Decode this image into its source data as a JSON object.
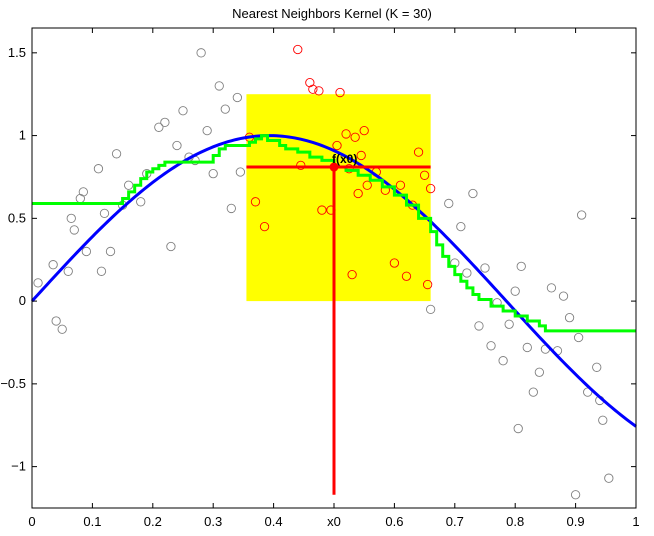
{
  "chart_data": {
    "type": "scatter",
    "title": "Nearest Neighbors Kernel (K = 30)",
    "xlabel": "",
    "ylabel": "",
    "xlim": [
      0,
      1
    ],
    "ylim": [
      -1.25,
      1.65
    ],
    "grid": false,
    "x_ticks": [
      {
        "value": 0,
        "label": "0"
      },
      {
        "value": 0.1,
        "label": "0.1"
      },
      {
        "value": 0.2,
        "label": "0.2"
      },
      {
        "value": 0.3,
        "label": "0.3"
      },
      {
        "value": 0.4,
        "label": "0.4"
      },
      {
        "value": 0.5,
        "label": "x0"
      },
      {
        "value": 0.6,
        "label": "0.6"
      },
      {
        "value": 0.7,
        "label": "0.7"
      },
      {
        "value": 0.8,
        "label": "0.8"
      },
      {
        "value": 0.9,
        "label": "0.9"
      },
      {
        "value": 1.0,
        "label": "1"
      }
    ],
    "y_ticks": [
      {
        "value": -1,
        "label": "−1"
      },
      {
        "value": -0.5,
        "label": "−0.5"
      },
      {
        "value": 0,
        "label": "0"
      },
      {
        "value": 0.5,
        "label": "0.5"
      },
      {
        "value": 1,
        "label": "1"
      },
      {
        "value": 1.5,
        "label": "1.5"
      }
    ],
    "x0": 0.5,
    "fx0": 0.81,
    "annotation": "f(x0)",
    "neighborhood": {
      "x_min": 0.355,
      "x_max": 0.66,
      "y_min": 0,
      "y_max": 1.25,
      "color": "#ffff00"
    },
    "true_function": {
      "name": "sin(4x)",
      "color": "#0000ff"
    },
    "colors": {
      "estimate": "#00ff00",
      "marker": "#ff0000",
      "outside_points": "#808080",
      "neighbor_points": "#ff0000"
    },
    "estimate": [
      [
        0.0,
        0.59
      ],
      [
        0.15,
        0.59
      ],
      [
        0.15,
        0.62
      ],
      [
        0.16,
        0.62
      ],
      [
        0.16,
        0.66
      ],
      [
        0.17,
        0.66
      ],
      [
        0.17,
        0.7
      ],
      [
        0.18,
        0.7
      ],
      [
        0.18,
        0.74
      ],
      [
        0.19,
        0.74
      ],
      [
        0.19,
        0.78
      ],
      [
        0.2,
        0.78
      ],
      [
        0.2,
        0.8
      ],
      [
        0.21,
        0.8
      ],
      [
        0.21,
        0.82
      ],
      [
        0.22,
        0.82
      ],
      [
        0.22,
        0.84
      ],
      [
        0.3,
        0.84
      ],
      [
        0.3,
        0.88
      ],
      [
        0.31,
        0.88
      ],
      [
        0.31,
        0.92
      ],
      [
        0.32,
        0.92
      ],
      [
        0.32,
        0.94
      ],
      [
        0.36,
        0.94
      ],
      [
        0.36,
        0.96
      ],
      [
        0.37,
        0.96
      ],
      [
        0.37,
        0.98
      ],
      [
        0.38,
        0.98
      ],
      [
        0.38,
        1.0
      ],
      [
        0.39,
        1.0
      ],
      [
        0.39,
        0.97
      ],
      [
        0.41,
        0.97
      ],
      [
        0.41,
        0.94
      ],
      [
        0.42,
        0.94
      ],
      [
        0.42,
        0.92
      ],
      [
        0.44,
        0.92
      ],
      [
        0.44,
        0.9
      ],
      [
        0.46,
        0.9
      ],
      [
        0.46,
        0.87
      ],
      [
        0.48,
        0.87
      ],
      [
        0.48,
        0.85
      ],
      [
        0.5,
        0.85
      ],
      [
        0.5,
        0.81
      ],
      [
        0.52,
        0.81
      ],
      [
        0.52,
        0.79
      ],
      [
        0.54,
        0.79
      ],
      [
        0.54,
        0.76
      ],
      [
        0.56,
        0.76
      ],
      [
        0.56,
        0.73
      ],
      [
        0.58,
        0.73
      ],
      [
        0.58,
        0.69
      ],
      [
        0.6,
        0.69
      ],
      [
        0.6,
        0.64
      ],
      [
        0.62,
        0.64
      ],
      [
        0.62,
        0.58
      ],
      [
        0.64,
        0.58
      ],
      [
        0.64,
        0.5
      ],
      [
        0.66,
        0.5
      ],
      [
        0.66,
        0.42
      ],
      [
        0.67,
        0.42
      ],
      [
        0.67,
        0.34
      ],
      [
        0.68,
        0.34
      ],
      [
        0.68,
        0.27
      ],
      [
        0.69,
        0.27
      ],
      [
        0.69,
        0.21
      ],
      [
        0.7,
        0.21
      ],
      [
        0.7,
        0.16
      ],
      [
        0.71,
        0.16
      ],
      [
        0.71,
        0.12
      ],
      [
        0.72,
        0.12
      ],
      [
        0.72,
        0.08
      ],
      [
        0.73,
        0.08
      ],
      [
        0.73,
        0.04
      ],
      [
        0.74,
        0.04
      ],
      [
        0.74,
        0.01
      ],
      [
        0.76,
        0.01
      ],
      [
        0.76,
        -0.03
      ],
      [
        0.78,
        -0.03
      ],
      [
        0.78,
        -0.06
      ],
      [
        0.8,
        -0.06
      ],
      [
        0.8,
        -0.09
      ],
      [
        0.82,
        -0.09
      ],
      [
        0.82,
        -0.12
      ],
      [
        0.84,
        -0.12
      ],
      [
        0.84,
        -0.15
      ],
      [
        0.85,
        -0.15
      ],
      [
        0.85,
        -0.18
      ],
      [
        1.0,
        -0.18
      ]
    ],
    "points": [
      [
        0.01,
        0.11
      ],
      [
        0.035,
        0.22
      ],
      [
        0.04,
        -0.12
      ],
      [
        0.05,
        -0.17
      ],
      [
        0.06,
        0.18
      ],
      [
        0.065,
        0.5
      ],
      [
        0.07,
        0.43
      ],
      [
        0.08,
        0.62
      ],
      [
        0.085,
        0.66
      ],
      [
        0.09,
        0.3
      ],
      [
        0.11,
        0.8
      ],
      [
        0.115,
        0.18
      ],
      [
        0.12,
        0.53
      ],
      [
        0.13,
        0.3
      ],
      [
        0.14,
        0.89
      ],
      [
        0.15,
        0.58
      ],
      [
        0.16,
        0.7
      ],
      [
        0.18,
        0.6
      ],
      [
        0.19,
        0.77
      ],
      [
        0.21,
        1.05
      ],
      [
        0.22,
        1.08
      ],
      [
        0.23,
        0.33
      ],
      [
        0.24,
        0.94
      ],
      [
        0.25,
        1.15
      ],
      [
        0.26,
        0.87
      ],
      [
        0.27,
        0.85
      ],
      [
        0.28,
        1.5
      ],
      [
        0.29,
        1.03
      ],
      [
        0.3,
        0.77
      ],
      [
        0.31,
        1.3
      ],
      [
        0.32,
        1.16
      ],
      [
        0.33,
        0.56
      ],
      [
        0.34,
        1.23
      ],
      [
        0.345,
        0.78
      ],
      [
        0.66,
        -0.05
      ],
      [
        0.69,
        0.59
      ],
      [
        0.7,
        0.23
      ],
      [
        0.71,
        0.45
      ],
      [
        0.72,
        0.17
      ],
      [
        0.73,
        0.65
      ],
      [
        0.74,
        -0.15
      ],
      [
        0.75,
        0.2
      ],
      [
        0.76,
        -0.27
      ],
      [
        0.77,
        -0.01
      ],
      [
        0.78,
        -0.36
      ],
      [
        0.79,
        -0.14
      ],
      [
        0.8,
        0.06
      ],
      [
        0.805,
        -0.77
      ],
      [
        0.81,
        0.21
      ],
      [
        0.82,
        -0.28
      ],
      [
        0.83,
        -0.55
      ],
      [
        0.84,
        -0.43
      ],
      [
        0.85,
        -0.29
      ],
      [
        0.86,
        0.08
      ],
      [
        0.87,
        -0.3
      ],
      [
        0.88,
        0.03
      ],
      [
        0.89,
        -0.1
      ],
      [
        0.9,
        -1.17
      ],
      [
        0.905,
        -0.22
      ],
      [
        0.91,
        0.52
      ],
      [
        0.92,
        -0.55
      ],
      [
        0.935,
        -0.4
      ],
      [
        0.94,
        -0.6
      ],
      [
        0.945,
        -0.72
      ],
      [
        0.955,
        -1.07
      ]
    ],
    "neighbor_points": [
      [
        0.36,
        0.99
      ],
      [
        0.37,
        0.6
      ],
      [
        0.385,
        0.45
      ],
      [
        0.44,
        1.52
      ],
      [
        0.445,
        0.82
      ],
      [
        0.46,
        1.32
      ],
      [
        0.465,
        1.28
      ],
      [
        0.475,
        1.27
      ],
      [
        0.48,
        0.55
      ],
      [
        0.495,
        0.55
      ],
      [
        0.505,
        0.94
      ],
      [
        0.51,
        1.26
      ],
      [
        0.52,
        1.01
      ],
      [
        0.525,
        0.8
      ],
      [
        0.53,
        0.16
      ],
      [
        0.535,
        0.99
      ],
      [
        0.54,
        0.65
      ],
      [
        0.545,
        0.88
      ],
      [
        0.55,
        1.03
      ],
      [
        0.555,
        0.7
      ],
      [
        0.57,
        0.78
      ],
      [
        0.585,
        0.67
      ],
      [
        0.6,
        0.23
      ],
      [
        0.61,
        0.7
      ],
      [
        0.62,
        0.15
      ],
      [
        0.63,
        0.58
      ],
      [
        0.64,
        0.9
      ],
      [
        0.65,
        0.76
      ],
      [
        0.655,
        0.1
      ],
      [
        0.66,
        0.68
      ]
    ]
  }
}
